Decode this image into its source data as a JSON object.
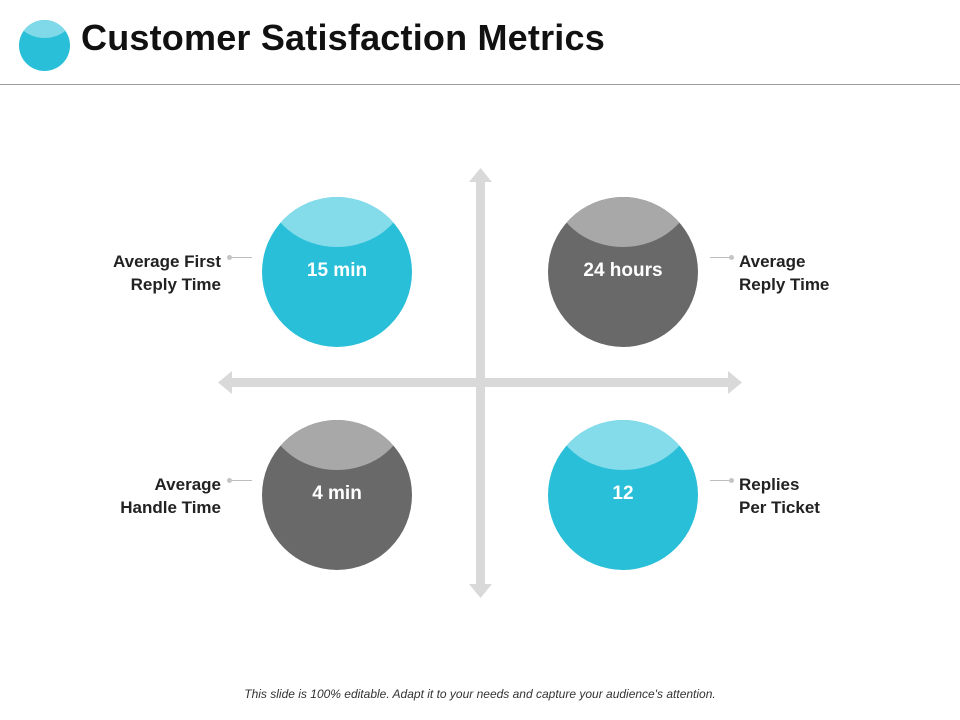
{
  "title": "Customer Satisfaction Metrics",
  "metrics": [
    {
      "label_line1": "Average First",
      "label_line2": "Reply Time",
      "value": "15 min",
      "color": "#29bfd8"
    },
    {
      "label_line1": "Average",
      "label_line2": "Reply Time",
      "value": "24 hours",
      "color": "#696969"
    },
    {
      "label_line1": "Average",
      "label_line2": "Handle Time",
      "value": "4 min",
      "color": "#696969"
    },
    {
      "label_line1": "Replies",
      "label_line2": "Per Ticket",
      "value": "12",
      "color": "#29bfd8"
    }
  ],
  "footer": "This slide is 100% editable. Adapt it to your needs and capture your audience's attention.",
  "colors": {
    "accent_cyan": "#29bfd8",
    "accent_gray": "#696969",
    "axis": "#d9d9d9"
  }
}
